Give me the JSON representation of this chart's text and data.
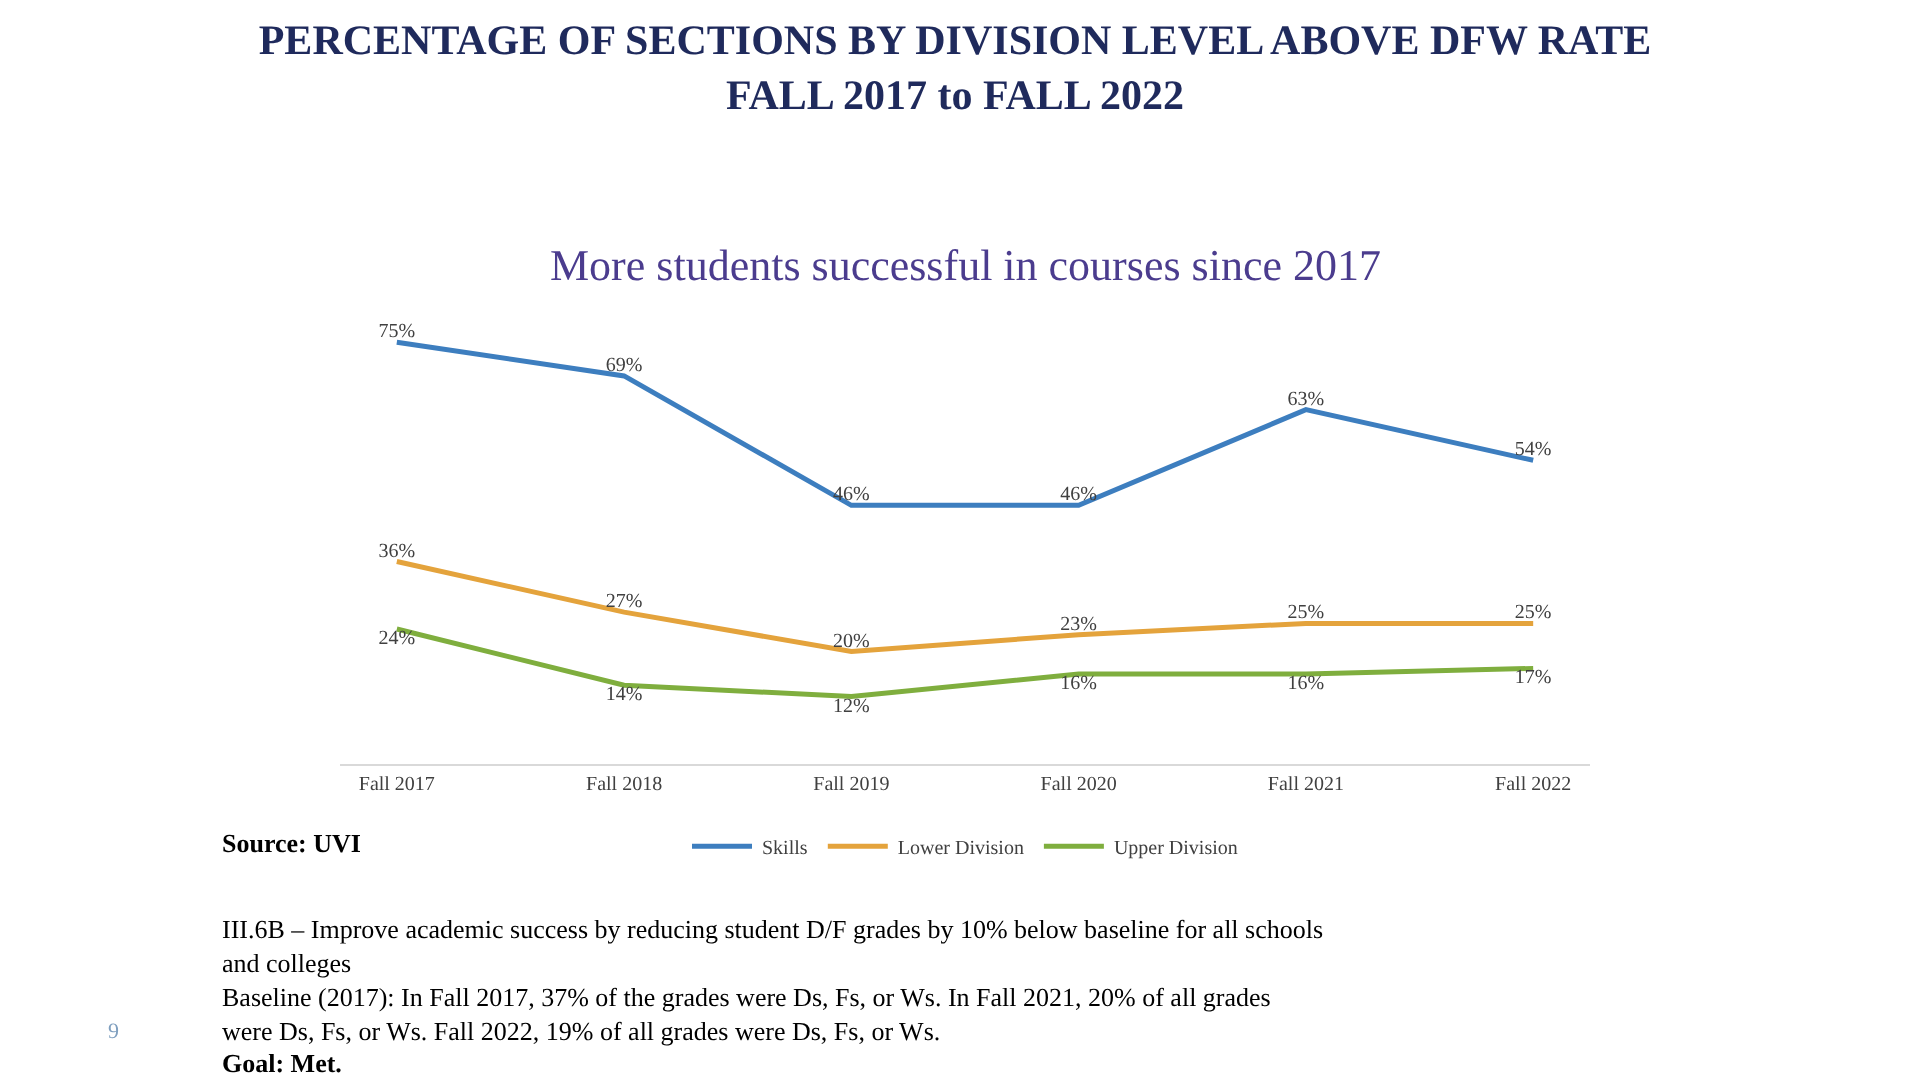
{
  "chart_data": {
    "type": "line",
    "title": "PERCENTAGE OF SECTIONS BY DIVISION LEVEL ABOVE DFW RATE\nFALL 2017 to FALL 2022",
    "subtitle": "More students successful in courses since 2017",
    "categories": [
      "Fall 2017",
      "Fall 2018",
      "Fall 2019",
      "Fall 2020",
      "Fall 2021",
      "Fall 2022"
    ],
    "series": [
      {
        "name": "Skills",
        "color": "#3d7ebf",
        "values": [
          75,
          69,
          46,
          46,
          63,
          54
        ],
        "value_labels": [
          "75%",
          "69%",
          "46%",
          "46%",
          "63%",
          "54%"
        ]
      },
      {
        "name": "Lower Division",
        "color": "#e4a33c",
        "values": [
          36,
          27,
          20,
          23,
          25,
          25
        ],
        "value_labels": [
          "36%",
          "27%",
          "20%",
          "23%",
          "25%",
          "25%"
        ]
      },
      {
        "name": "Upper Division",
        "color": "#7fae3e",
        "values": [
          24,
          14,
          12,
          16,
          16,
          17
        ],
        "value_labels": [
          "24%",
          "14%",
          "12%",
          "16%",
          "16%",
          "17%"
        ]
      }
    ],
    "legend": "bottom",
    "marker": "none",
    "line_style": "solid",
    "annotations": [
      "Source: UVI",
      "III.6B – Improve academic success by reducing student D/F grades by 10% below baseline for all schools\nand colleges",
      "Baseline (2017): In Fall 2017, 37% of the grades were Ds, Fs, or Ws. In Fall 2021, 20% of all grades\nwere Ds, Fs, or Ws. Fall 2022, 19% of all grades were Ds, Fs, or Ws.",
      "Goal: Met.",
      "9"
    ]
  }
}
